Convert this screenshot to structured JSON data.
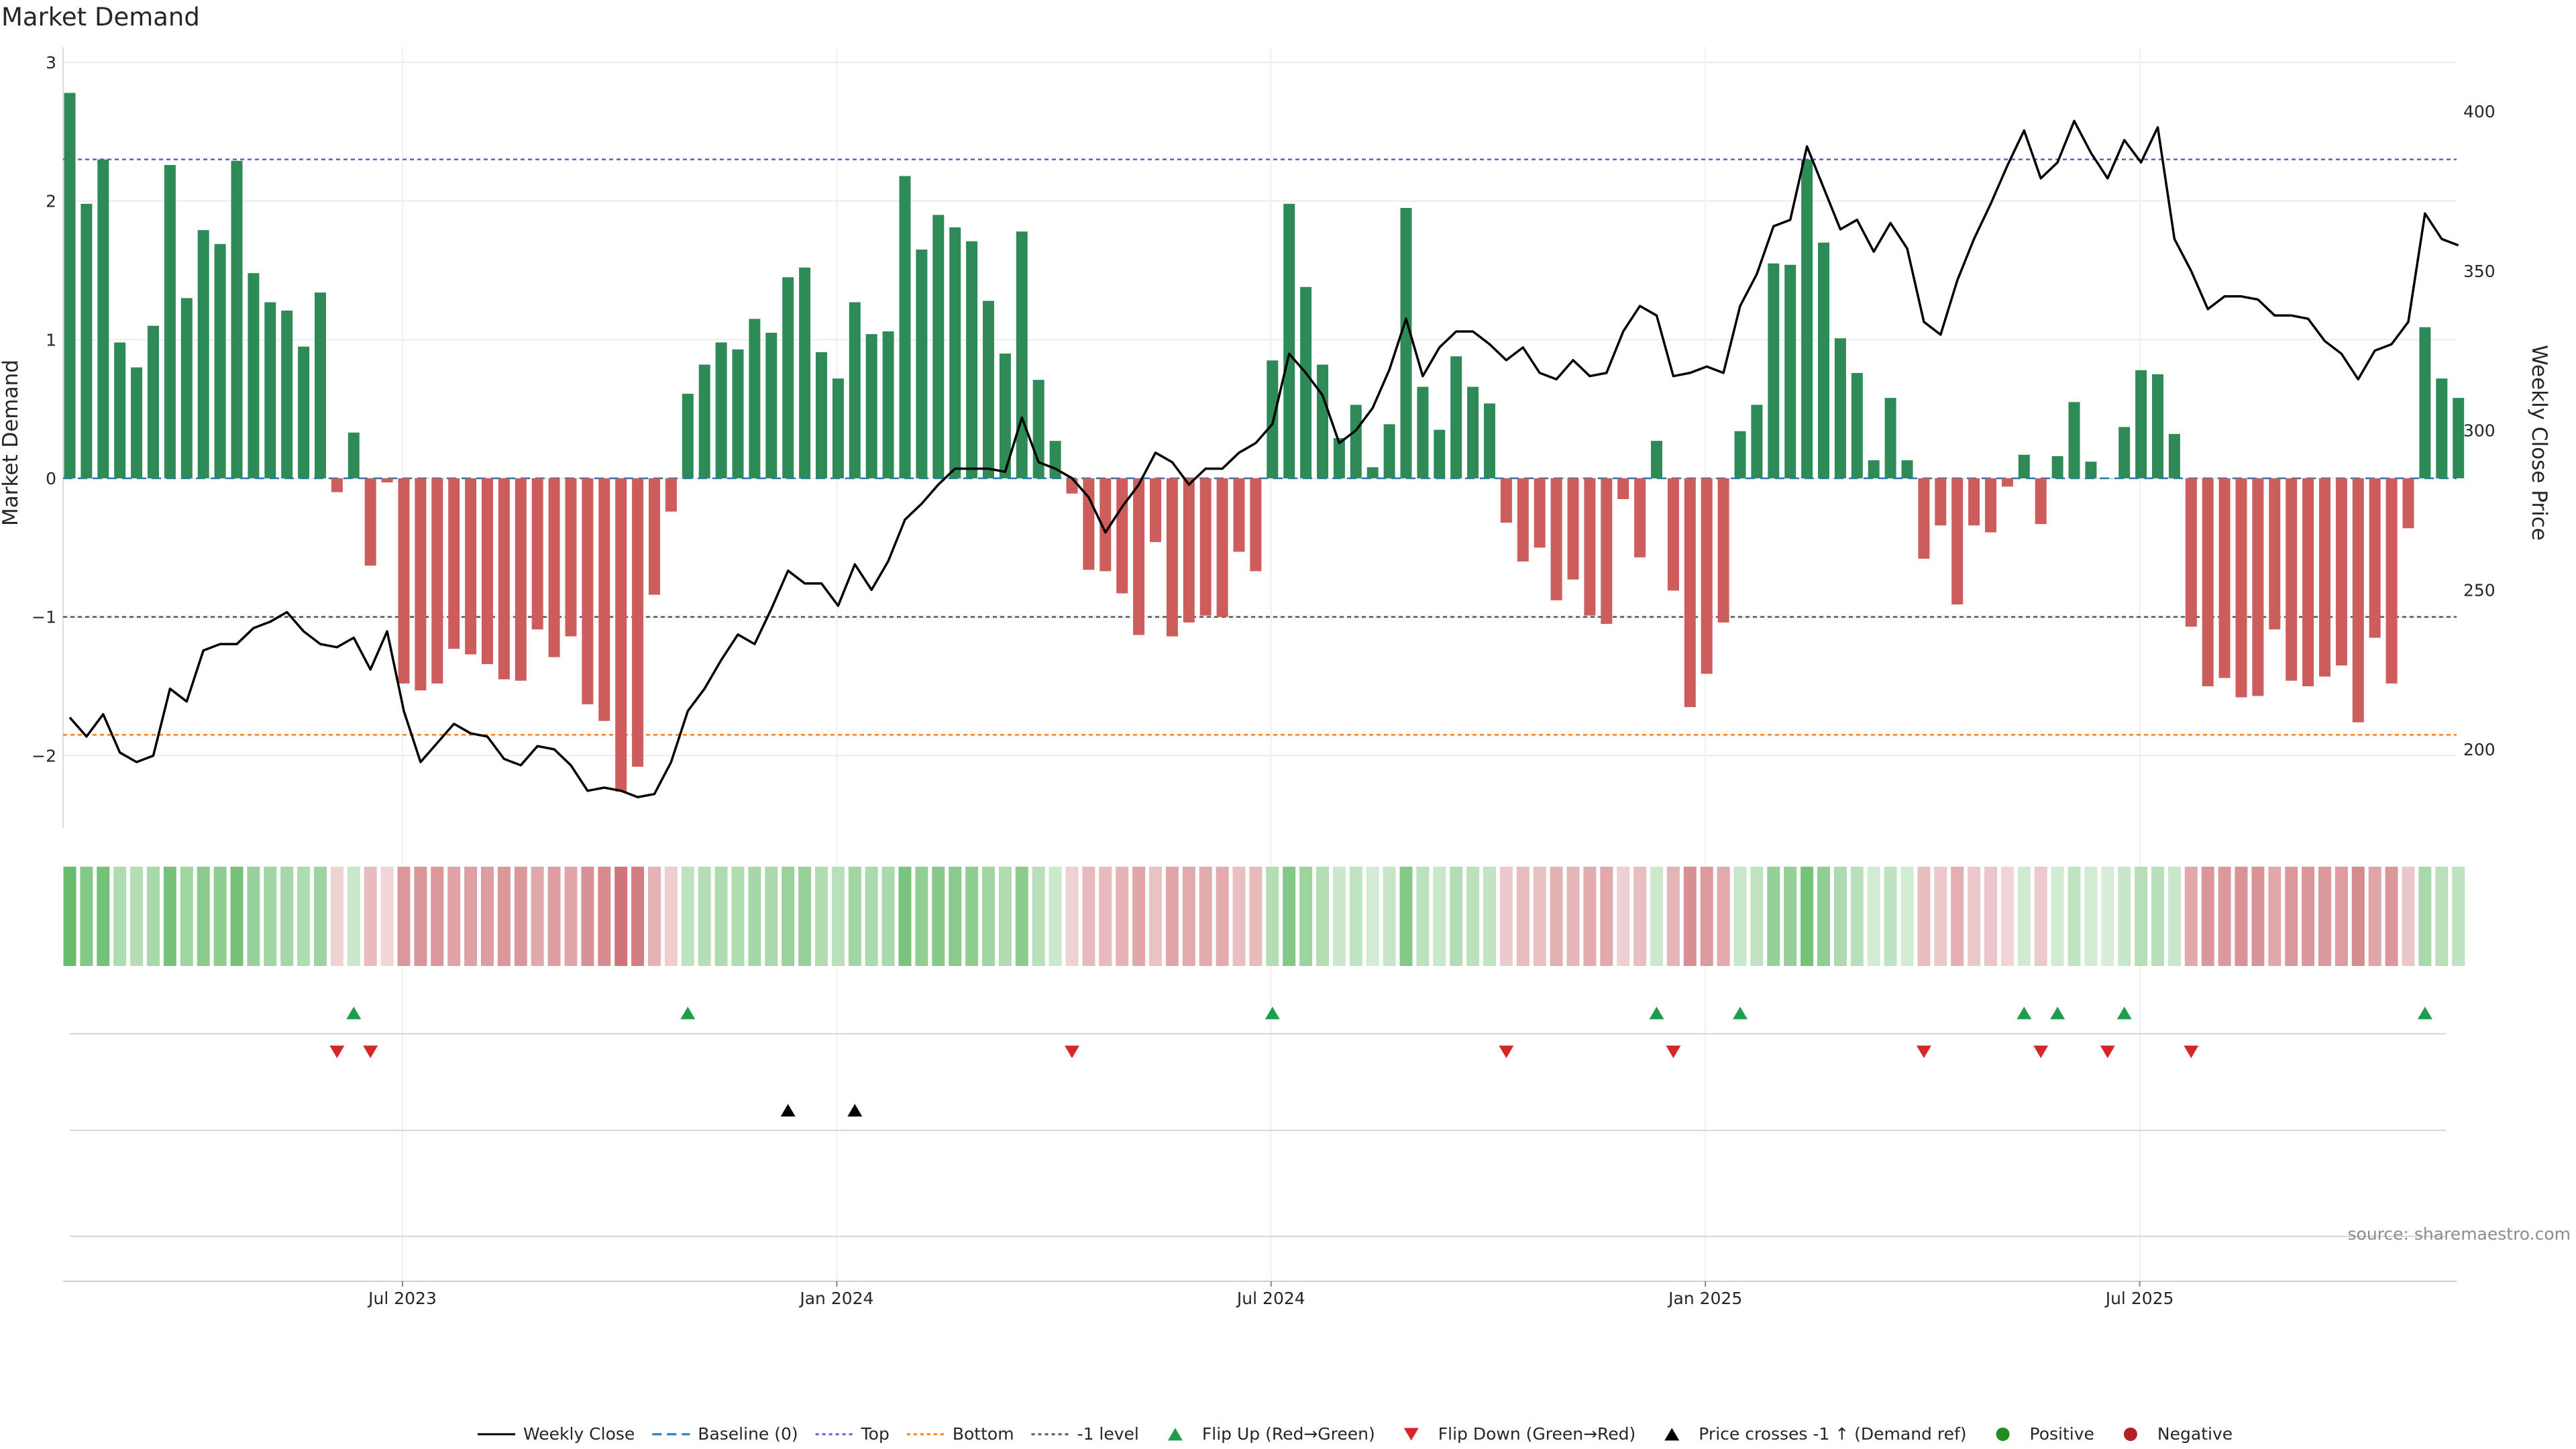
{
  "chart_data": {
    "type": "bar",
    "title": "Market Demand",
    "ylabel": "Market Demand",
    "y2label": "Weekly Close Price",
    "ylim": [
      -2.5,
      3.0
    ],
    "y2lim": [
      174,
      414
    ],
    "yticks": [
      3,
      2,
      1,
      0,
      -1,
      -2
    ],
    "ytick_labels": [
      "3",
      "2",
      "1",
      "0",
      "−1",
      "−2"
    ],
    "y2ticks": [
      400,
      350,
      300,
      250,
      200
    ],
    "y2tick_labels": [
      "400",
      "350",
      "300",
      "250",
      "200"
    ],
    "reference_lines": {
      "top": 2.3,
      "minus_one": -1.0,
      "bottom": -1.85
    },
    "x_tick_labels": [
      "Jul 2023",
      "Jan 2024",
      "Jul 2024",
      "Jan 2025",
      "Jul 2025"
    ],
    "x_tick_weeks": [
      20,
      46,
      72,
      98,
      124
    ],
    "demand": [
      2.78,
      1.98,
      2.3,
      0.98,
      0.8,
      1.1,
      2.26,
      1.3,
      1.79,
      1.69,
      2.29,
      1.48,
      1.27,
      1.21,
      0.95,
      1.34,
      -0.1,
      0.33,
      -0.63,
      -0.03,
      -1.48,
      -1.53,
      -1.48,
      -1.23,
      -1.27,
      -1.34,
      -1.45,
      -1.46,
      -1.09,
      -1.29,
      -1.14,
      -1.63,
      -1.75,
      -2.26,
      -2.08,
      -0.84,
      -0.24,
      0.61,
      0.82,
      0.98,
      0.93,
      1.15,
      1.05,
      1.45,
      1.52,
      0.91,
      0.72,
      1.27,
      1.04,
      1.06,
      2.18,
      1.65,
      1.9,
      1.81,
      1.71,
      1.28,
      0.9,
      1.78,
      0.71,
      0.27,
      -0.11,
      -0.66,
      -0.67,
      -0.83,
      -1.13,
      -0.46,
      -1.14,
      -1.04,
      -0.99,
      -1.0,
      -0.53,
      -0.67,
      0.85,
      1.98,
      1.38,
      0.82,
      0.29,
      0.53,
      0.08,
      0.39,
      1.95,
      0.66,
      0.35,
      0.88,
      0.66,
      0.54,
      -0.32,
      -0.6,
      -0.5,
      -0.88,
      -0.73,
      -0.99,
      -1.05,
      -0.15,
      -0.57,
      0.27,
      -0.81,
      -1.65,
      -1.41,
      -1.04,
      0.34,
      0.53,
      1.55,
      1.54,
      2.3,
      1.7,
      1.01,
      0.76,
      0.13,
      0.58,
      0.13,
      -0.58,
      -0.34,
      -0.91,
      -0.34,
      -0.39,
      -0.06,
      0.17,
      -0.33,
      0.16,
      0.55,
      0.12,
      0.0,
      0.37,
      0.78,
      0.75,
      0.32,
      -1.07,
      -1.5,
      -1.44,
      -1.58,
      -1.57,
      -1.09,
      -1.46,
      -1.5,
      -1.43,
      -1.35,
      -1.76,
      -1.15,
      -1.48,
      -0.36,
      1.09,
      0.72,
      0.58
    ],
    "weekly_close": [
      210,
      204,
      211,
      199,
      196,
      198,
      219,
      215,
      231,
      233,
      233,
      238,
      240,
      243,
      237,
      233,
      232,
      235,
      225,
      237,
      212,
      196,
      202,
      208,
      205,
      204,
      197,
      195,
      201,
      200,
      195,
      187,
      188,
      187,
      185,
      186,
      196,
      212,
      219,
      228,
      236,
      233,
      244,
      256,
      252,
      252,
      245,
      258,
      250,
      259,
      272,
      277,
      283,
      288,
      288,
      288,
      287,
      304,
      290,
      288,
      285,
      279,
      268,
      276,
      283,
      293,
      290,
      283,
      288,
      288,
      293,
      296,
      302,
      324,
      318,
      311,
      296,
      300,
      307,
      319,
      335,
      317,
      326,
      331,
      331,
      327,
      322,
      326,
      318,
      316,
      322,
      317,
      318,
      331,
      339,
      336,
      317,
      318,
      320,
      318,
      339,
      349,
      364,
      366,
      389,
      376,
      363,
      366,
      356,
      365,
      357,
      334,
      330,
      347,
      360,
      371,
      383,
      394,
      379,
      384,
      397,
      387,
      379,
      391,
      384,
      395,
      360,
      350,
      338,
      342,
      342,
      341,
      336,
      336,
      335,
      328,
      324,
      316,
      325,
      327,
      334,
      368,
      360,
      358
    ],
    "flip_up_weeks": [
      17,
      37,
      72,
      95,
      100,
      117,
      119,
      123,
      141
    ],
    "flip_down_weeks": [
      16,
      18,
      60,
      86,
      96,
      111,
      118,
      122,
      127
    ],
    "price_cross_weeks": [
      43,
      47
    ],
    "source_note": "source: sharemaestro.com",
    "legend": [
      "Weekly Close",
      "Baseline (0)",
      "Top",
      "Bottom",
      "-1 level",
      "Flip Up (Red→Green)",
      "Flip Down (Green→Red)",
      "Price crosses -1 ↑ (Demand ref)",
      "Positive",
      "Negative"
    ],
    "colors": {
      "pos_bar": "#2e8b57",
      "neg_bar": "#cd5c5c",
      "price_line": "#000000",
      "baseline": "#1f77b4",
      "top_line": "#6a5acd",
      "bottom_line": "#ff7f0e",
      "minus_one_line": "#555555",
      "flip_up": "#1f9d4d",
      "flip_down": "#d62728",
      "cross": "#000000",
      "positive_dot": "#228b22",
      "negative_dot": "#b22222"
    }
  }
}
